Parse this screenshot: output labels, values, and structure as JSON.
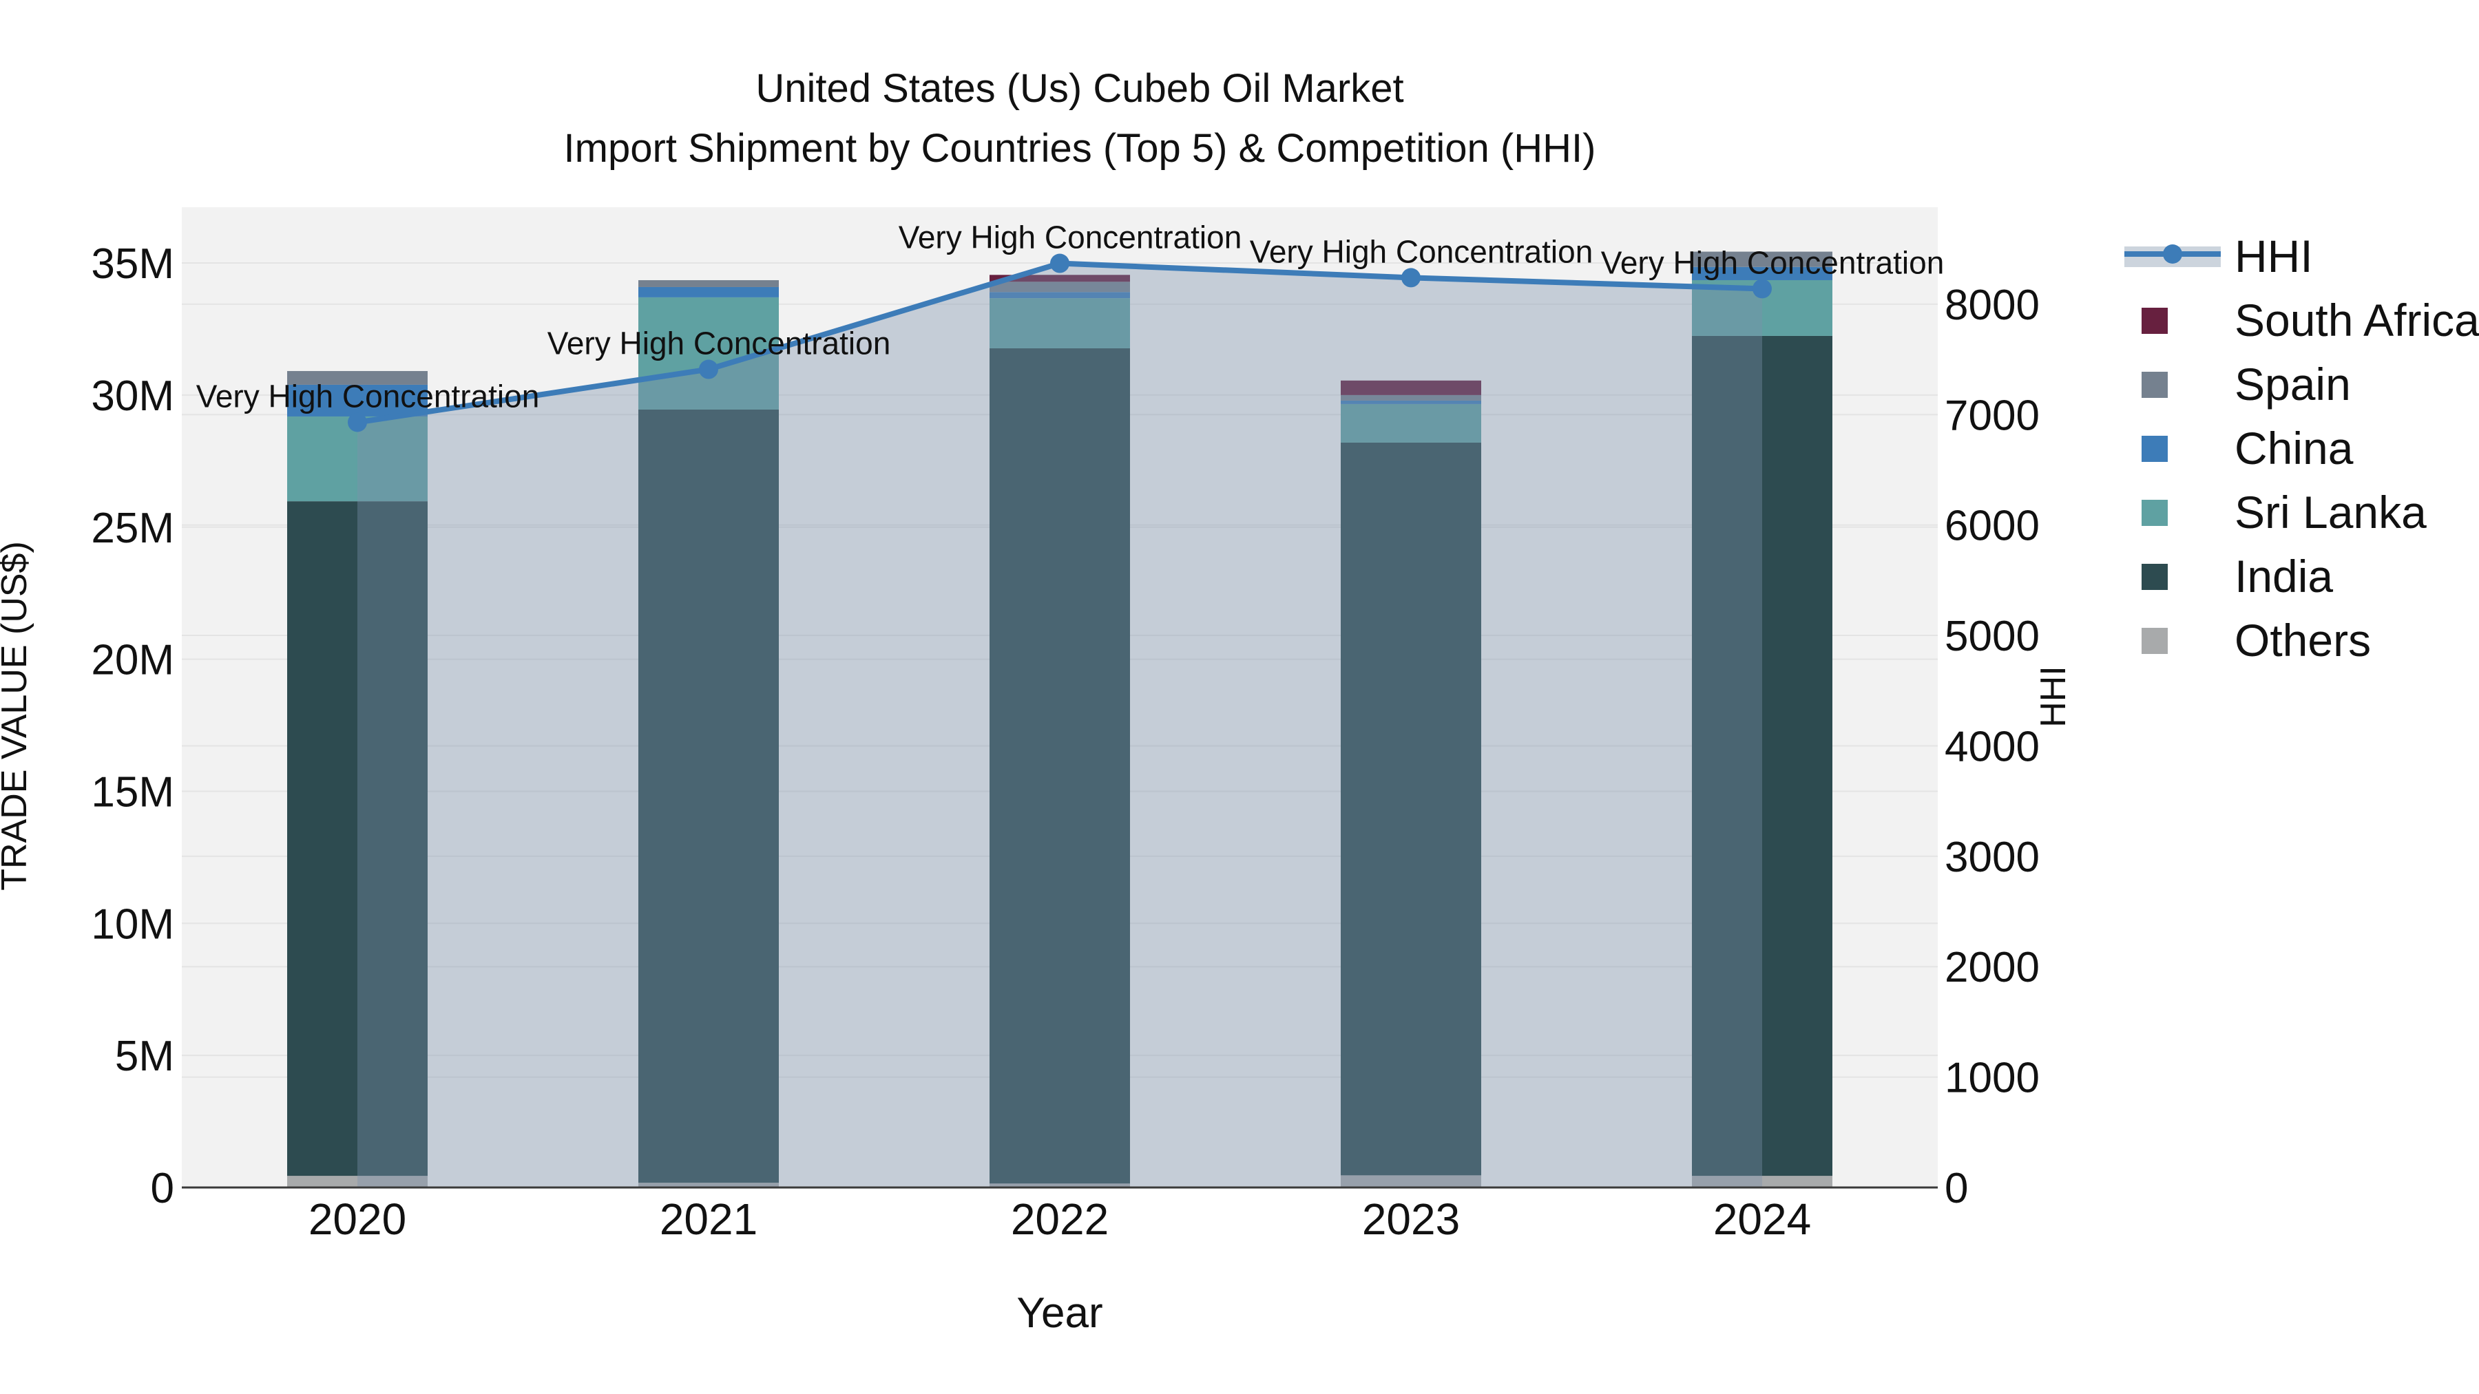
{
  "title": {
    "line1": "United States (Us) Cubeb Oil Market",
    "line2": "Import Shipment by Countries (Top 5) & Competition (HHI)"
  },
  "axes": {
    "y_left": {
      "title": "TRADE VALUE (US$)",
      "ticks": [
        "0",
        "5M",
        "10M",
        "15M",
        "20M",
        "25M",
        "30M",
        "35M"
      ]
    },
    "y_right": {
      "title": "HHI",
      "ticks": [
        "0",
        "1000",
        "2000",
        "3000",
        "4000",
        "5000",
        "6000",
        "7000",
        "8000"
      ]
    },
    "x": {
      "title": "Year",
      "ticks": [
        "2020",
        "2021",
        "2022",
        "2023",
        "2024"
      ]
    }
  },
  "legend": [
    {
      "label": "HHI",
      "type": "line",
      "color": "#3d7cb8"
    },
    {
      "label": "South Africa",
      "type": "swatch",
      "color": "#67203f"
    },
    {
      "label": "Spain",
      "type": "swatch",
      "color": "#75818f"
    },
    {
      "label": "China",
      "type": "swatch",
      "color": "#3d7cb8"
    },
    {
      "label": "Sri Lanka",
      "type": "swatch",
      "color": "#5fa1a2"
    },
    {
      "label": "India",
      "type": "swatch",
      "color": "#2d4b50"
    },
    {
      "label": "Others",
      "type": "swatch",
      "color": "#a8aaab"
    }
  ],
  "annotations": [
    "Very High Concentration",
    "Very High Concentration",
    "Very High Concentration",
    "Very High Concentration",
    "Very High Concentration"
  ],
  "colors": {
    "plot_bg": "#f2f2f2",
    "grid": "#e4e4e4",
    "axis_line": "#3a3a3a",
    "hhi_line": "#3d7cb8",
    "area_fill": "rgba(124,144,172,0.38)",
    "legend_band": "#ccd4dd",
    "series": {
      "Others": "#a8aaab",
      "India": "#2d4b50",
      "Sri Lanka": "#5fa1a2",
      "China": "#3d7cb8",
      "Spain": "#75818f",
      "South Africa": "#67203f"
    }
  },
  "chart_data": {
    "type": "bar",
    "subtype": "stacked-bar-with-line",
    "categories": [
      "2020",
      "2021",
      "2022",
      "2023",
      "2024"
    ],
    "bar_unit": "M US$ (trade value)",
    "series": [
      {
        "name": "Others",
        "values": [
          0.44,
          0.18,
          0.15,
          0.46,
          0.44
        ]
      },
      {
        "name": "India",
        "values": [
          25.54,
          29.27,
          31.62,
          27.74,
          31.8
        ]
      },
      {
        "name": "Sri Lanka",
        "values": [
          3.21,
          4.25,
          1.9,
          1.46,
          2.11
        ]
      },
      {
        "name": "China",
        "values": [
          1.2,
          0.39,
          0.23,
          0.13,
          0.5
        ]
      },
      {
        "name": "Spain",
        "values": [
          0.52,
          0.26,
          0.39,
          0.21,
          0.58
        ]
      },
      {
        "name": "South Africa",
        "values": [
          0.0,
          0.0,
          0.26,
          0.55,
          0.0
        ]
      }
    ],
    "bar_totals_m": [
      30.91,
      34.35,
      34.55,
      30.55,
      35.43
    ],
    "line": {
      "name": "HHI",
      "axis": "right",
      "values": [
        6930,
        7410,
        8370,
        8240,
        8140
      ]
    },
    "title": "United States (Us) Cubeb Oil Market — Import Shipment by Countries (Top 5) & Competition (HHI)",
    "xlabel": "Year",
    "ylabel_left": "TRADE VALUE (US$)",
    "ylabel_right": "HHI",
    "ylim_left_m": [
      0,
      37.1
    ],
    "ylim_right": [
      0,
      8878
    ],
    "grid": true,
    "legend_position": "right"
  }
}
